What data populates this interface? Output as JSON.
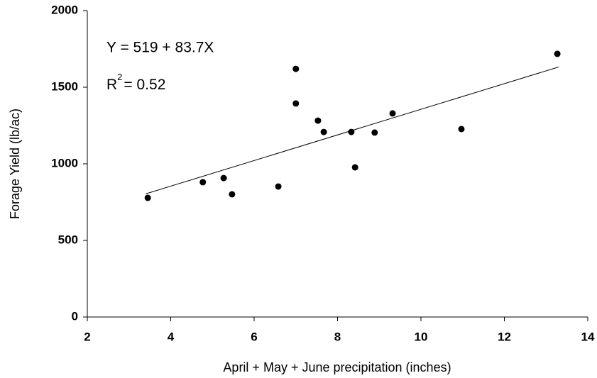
{
  "chart_data": {
    "type": "scatter",
    "x_label": "April + May + June precipitation (inches)",
    "y_label": "Forage Yield (lb/ac)",
    "equation": "Y = 519 + 83.7X",
    "r_squared": {
      "base": "R",
      "sup": "2",
      "rest": "= 0.52"
    },
    "x": [
      3.45,
      4.77,
      5.27,
      5.47,
      6.58,
      7.0,
      7.0,
      7.53,
      7.67,
      8.33,
      8.42,
      8.89,
      9.32,
      10.97,
      13.27
    ],
    "y": [
      778,
      880,
      907,
      801,
      852,
      1620,
      1394,
      1282,
      1208,
      1208,
      977,
      1204,
      1329,
      1227,
      1718
    ],
    "color": "#000000",
    "trendline": {
      "x": [
        3.4,
        13.3
      ],
      "y": [
        804,
        1632
      ]
    },
    "xlim": [
      2,
      14
    ],
    "xticks": [
      2,
      4,
      6,
      8,
      10,
      12,
      14
    ],
    "ylim": [
      0,
      2000
    ],
    "yticks": [
      0,
      500,
      1000,
      1500,
      2000
    ]
  }
}
